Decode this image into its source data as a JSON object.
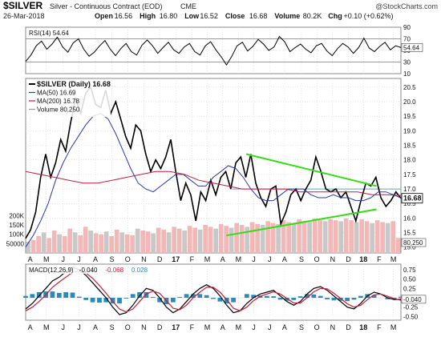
{
  "header": {
    "symbol": "$SILVER",
    "contract": "Silver - Continuous Contract (EOD)",
    "exchange": "CME",
    "watermark": "@StockCharts.com",
    "date": "26-Mar-2018",
    "ohlc": [
      {
        "label": "Open",
        "value": "16.56"
      },
      {
        "label": "High",
        "value": "16.80"
      },
      {
        "label": "Low",
        "value": "16.52"
      },
      {
        "label": "Close",
        "value": "16.68"
      },
      {
        "label": "Volume",
        "value": "80.2K"
      },
      {
        "label": "Chg",
        "value": "+0.10 (+0.62%)"
      }
    ]
  },
  "chart_data": [
    {
      "type": "line",
      "name": "rsi",
      "legend": "RSI(14) 54.64",
      "last_value": "54.64",
      "ylim": [
        10,
        90
      ],
      "reference_lines": [
        70,
        30
      ],
      "y_ticks": [
        {
          "value": 90,
          "label": "90"
        },
        {
          "value": 70,
          "label": "70"
        },
        {
          "value": 50,
          "label": "50"
        },
        {
          "value": 30,
          "label": "30"
        },
        {
          "value": 10,
          "label": "10"
        }
      ],
      "values": [
        31,
        42,
        58,
        66,
        52,
        61,
        73,
        56,
        47,
        63,
        70,
        52,
        40,
        47,
        58,
        67,
        52,
        41,
        53,
        62,
        48,
        42,
        59,
        68,
        58,
        45,
        55,
        64,
        51,
        45,
        56,
        62,
        48,
        42,
        58,
        65,
        51,
        39,
        25,
        40,
        58,
        64,
        49,
        57,
        69,
        61,
        50,
        56,
        74,
        65,
        48,
        55,
        61,
        52,
        46,
        58,
        62,
        49,
        41,
        53,
        62,
        56,
        45,
        55,
        71,
        54,
        48,
        57,
        64,
        51,
        58,
        55
      ]
    },
    {
      "type": "line",
      "name": "price",
      "legend": [
        {
          "label": "$SILVER (Daily) 16.68",
          "color": "#000000"
        },
        {
          "label": "MA(50) 16.69",
          "color": "#2b3aa8"
        },
        {
          "label": "MA(200) 16.78",
          "color": "#c41e3a"
        },
        {
          "label": "Volume 80,250",
          "color": "#999999"
        }
      ],
      "ylim": [
        14.8,
        20.8
      ],
      "y_ticks": [
        {
          "value": 20.5,
          "label": "20.5"
        },
        {
          "value": 20.0,
          "label": "20.0"
        },
        {
          "value": 19.5,
          "label": "19.5"
        },
        {
          "value": 19.0,
          "label": "19.0"
        },
        {
          "value": 18.5,
          "label": "18.5"
        },
        {
          "value": 18.0,
          "label": "18.0"
        },
        {
          "value": 17.5,
          "label": "17.5"
        },
        {
          "value": 17.0,
          "label": "17.0"
        },
        {
          "value": 16.5,
          "label": "16.5"
        },
        {
          "value": 16.0,
          "label": "16.0"
        },
        {
          "value": 15.5,
          "label": "15.5"
        },
        {
          "value": 15.0,
          "label": "15.0"
        }
      ],
      "last_price_label": "16.68",
      "volume_last_label": "80,250",
      "volume_ticks": [
        "200K",
        "150K",
        "100K",
        "50000"
      ],
      "volume_ticks_values": [
        200000,
        150000,
        100000,
        50000
      ],
      "volume_max": 300000,
      "series": [
        {
          "name": "$SILVER",
          "color": "#000000",
          "values": [
            15.3,
            15.6,
            16.2,
            17.4,
            18.2,
            17.4,
            17.9,
            18.7,
            18.3,
            19.3,
            20.1,
            19.6,
            20.3,
            20.5,
            19.9,
            19.8,
            20.4,
            19.6,
            20.0,
            19.4,
            18.8,
            18.4,
            19.2,
            19.0,
            18.2,
            17.6,
            18.0,
            17.7,
            18.1,
            18.7,
            17.6,
            16.6,
            17.2,
            16.8,
            15.9,
            16.9,
            16.6,
            17.3,
            16.8,
            17.4,
            17.6,
            17.0,
            17.9,
            18.1,
            17.4,
            18.2,
            17.2,
            16.7,
            16.4,
            17.0,
            17.1,
            15.8,
            16.2,
            16.8,
            17.0,
            16.6,
            17.0,
            17.3,
            18.1,
            17.6,
            17.0,
            16.9,
            17.0,
            16.7,
            16.9,
            16.4,
            15.9,
            16.6,
            17.2,
            17.1,
            17.4,
            16.7,
            16.4,
            16.6,
            16.9,
            16.68
          ]
        },
        {
          "name": "MA(50)",
          "color": "#2b3aa8",
          "values": [
            15.0,
            15.4,
            15.9,
            16.5,
            17.3,
            17.9,
            18.4,
            18.8,
            19.2,
            19.5,
            19.6,
            19.4,
            18.9,
            18.3,
            17.7,
            17.2,
            17.0,
            16.9,
            17.1,
            17.3,
            17.5,
            17.5,
            17.3,
            17.1,
            17.1,
            17.4,
            17.6,
            17.8,
            17.7,
            17.4,
            17.0,
            16.7,
            16.6,
            16.6,
            16.8,
            17.0,
            17.0,
            17.0,
            16.8,
            16.7,
            16.7,
            16.8,
            16.7,
            16.7,
            16.6,
            16.6,
            16.7,
            16.9,
            16.9,
            16.8,
            16.69
          ]
        },
        {
          "name": "MA(200)",
          "color": "#c41e3a",
          "values": [
            17.6,
            17.5,
            17.4,
            17.3,
            17.2,
            17.2,
            17.3,
            17.4,
            17.5,
            17.6,
            17.6,
            17.5,
            17.3,
            17.2,
            17.1,
            17.0,
            17.0,
            17.0,
            17.0,
            16.9,
            16.9,
            16.9,
            16.9,
            16.9,
            16.8,
            16.8,
            16.78
          ]
        }
      ],
      "volumes": [
        60000,
        70000,
        90000,
        110000,
        80000,
        120000,
        100000,
        90000,
        130000,
        110000,
        95000,
        140000,
        120000,
        105000,
        100000,
        115000,
        90000,
        125000,
        110000,
        100000,
        95000,
        130000,
        120000,
        115000,
        105000,
        135000,
        125000,
        110000,
        140000,
        130000,
        120000,
        145000,
        135000,
        125000,
        150000,
        140000,
        130000,
        155000,
        145000,
        135000,
        160000,
        150000,
        140000,
        165000,
        155000,
        150000,
        170000,
        160000,
        155000,
        175000,
        165000,
        160000,
        180000,
        170000,
        165000,
        185000,
        175000,
        170000,
        180000,
        175000,
        170000,
        185000,
        175000,
        165000,
        180000,
        170000,
        160000,
        175000,
        165000,
        160000,
        170000,
        80250
      ],
      "trendlines": [
        {
          "name": "upper-resistance",
          "color": "#33dd11",
          "x": [
            0.588,
            0.935
          ],
          "y": [
            18.2,
            17.1
          ]
        },
        {
          "name": "lower-support",
          "color": "#33dd11",
          "x": [
            0.535,
            0.935
          ],
          "y": [
            15.4,
            16.3
          ]
        }
      ],
      "horizontal_levels": [
        {
          "value": 17.0,
          "color": "#6a9fc4"
        }
      ]
    },
    {
      "type": "line",
      "name": "macd",
      "legend": [
        {
          "label": "MACD(12,26,9)",
          "value": "-0.040",
          "color": "#000000"
        },
        {
          "label": "",
          "value": "-0.068",
          "color": "#c41e3a"
        },
        {
          "label": "",
          "value": "0.028",
          "color": "#2b8ab8"
        }
      ],
      "ylim": [
        -0.6,
        0.9
      ],
      "y_ticks": [
        {
          "value": 0.75,
          "label": "0.75"
        },
        {
          "value": 0.5,
          "label": "0.50"
        },
        {
          "value": 0.25,
          "label": "0.25"
        },
        {
          "value": 0.0,
          "label": "0.00"
        },
        {
          "value": -0.25,
          "label": "-0.25"
        },
        {
          "value": -0.5,
          "label": "-0.50"
        }
      ],
      "last_value_label": "-0.040",
      "series": [
        {
          "name": "MACD",
          "color": "#000000",
          "values": [
            -0.3,
            -0.15,
            0.05,
            0.25,
            0.45,
            0.55,
            0.7,
            0.82,
            0.75,
            0.6,
            0.4,
            0.2,
            0.0,
            -0.25,
            -0.45,
            -0.4,
            -0.2,
            0.05,
            0.25,
            0.2,
            0.0,
            -0.25,
            -0.4,
            -0.3,
            -0.1,
            0.1,
            0.25,
            0.35,
            0.25,
            0.05,
            -0.2,
            -0.4,
            -0.35,
            -0.15,
            0.0,
            0.1,
            0.15,
            0.2,
            0.05,
            -0.1,
            -0.2,
            -0.1,
            0.1,
            0.25,
            0.3,
            0.2,
            0.05,
            -0.1,
            -0.25,
            -0.3,
            -0.15,
            0.05,
            0.15,
            0.1,
            0.0,
            -0.05,
            -0.04
          ]
        },
        {
          "name": "Signal",
          "color": "#c41e3a",
          "values": [
            -0.35,
            -0.25,
            -0.1,
            0.08,
            0.28,
            0.42,
            0.55,
            0.68,
            0.72,
            0.66,
            0.52,
            0.33,
            0.12,
            -0.1,
            -0.3,
            -0.38,
            -0.3,
            -0.1,
            0.1,
            0.18,
            0.12,
            -0.08,
            -0.28,
            -0.32,
            -0.2,
            0.0,
            0.15,
            0.28,
            0.28,
            0.15,
            -0.05,
            -0.28,
            -0.35,
            -0.25,
            -0.08,
            0.04,
            0.1,
            0.16,
            0.1,
            -0.02,
            -0.14,
            -0.14,
            0.0,
            0.16,
            0.25,
            0.24,
            0.12,
            -0.02,
            -0.16,
            -0.25,
            -0.2,
            -0.05,
            0.08,
            0.1,
            0.04,
            -0.02,
            -0.068
          ]
        }
      ]
    }
  ],
  "x_axis": {
    "labels": [
      {
        "label": "A",
        "pos": 0.012,
        "bold": false
      },
      {
        "label": "M",
        "pos": 0.055,
        "bold": false
      },
      {
        "label": "J",
        "pos": 0.1,
        "bold": false
      },
      {
        "label": "J",
        "pos": 0.142,
        "bold": false
      },
      {
        "label": "A",
        "pos": 0.186,
        "bold": false
      },
      {
        "label": "S",
        "pos": 0.23,
        "bold": false
      },
      {
        "label": "O",
        "pos": 0.272,
        "bold": false
      },
      {
        "label": "N",
        "pos": 0.315,
        "bold": false
      },
      {
        "label": "D",
        "pos": 0.357,
        "bold": false
      },
      {
        "label": "17",
        "pos": 0.4,
        "bold": true
      },
      {
        "label": "F",
        "pos": 0.443,
        "bold": false
      },
      {
        "label": "M",
        "pos": 0.484,
        "bold": false
      },
      {
        "label": "A",
        "pos": 0.525,
        "bold": false
      },
      {
        "label": "M",
        "pos": 0.567,
        "bold": false
      },
      {
        "label": "J",
        "pos": 0.608,
        "bold": false
      },
      {
        "label": "J",
        "pos": 0.65,
        "bold": false
      },
      {
        "label": "A",
        "pos": 0.69,
        "bold": false
      },
      {
        "label": "S",
        "pos": 0.735,
        "bold": false
      },
      {
        "label": "O",
        "pos": 0.776,
        "bold": false
      },
      {
        "label": "N",
        "pos": 0.818,
        "bold": false
      },
      {
        "label": "D",
        "pos": 0.86,
        "bold": false
      },
      {
        "label": "18",
        "pos": 0.9,
        "bold": true
      },
      {
        "label": "F",
        "pos": 0.942,
        "bold": false
      },
      {
        "label": "M",
        "pos": 0.98,
        "bold": false
      }
    ]
  },
  "colors": {
    "price_tag_bg": "#ffffff",
    "volume_bar": "#c8c8c8",
    "volume_bar_up": "#f2b8b8",
    "grid": "#cfcfcf",
    "panel_border": "#888888",
    "histogram": "#2b8ab8",
    "ref_line": "#7a7a7a"
  }
}
